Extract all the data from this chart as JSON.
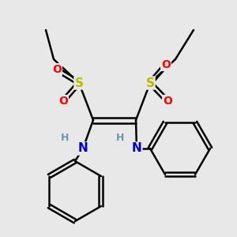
{
  "background_color": "#e8e8e8",
  "S_color": "#b8b800",
  "O_color": "#ff0000",
  "N_color": "#0000bb",
  "H_color": "#6699aa",
  "bond_color": "#000000",
  "bond_width": 1.8,
  "figsize": [
    3.0,
    3.0
  ],
  "dpi": 100,
  "xlim": [
    0,
    300
  ],
  "ylim": [
    0,
    300
  ]
}
